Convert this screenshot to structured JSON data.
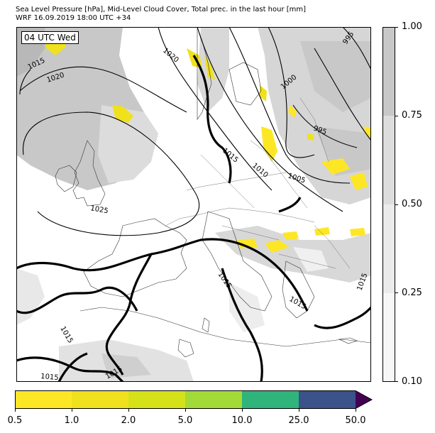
{
  "header": {
    "title_line1": "Sea Level Pressure [hPa], Mid-Level Cloud Cover, Total prec. in the last hour [mm]",
    "title_line2": "WRF 16.09.2019 18:00 UTC +34"
  },
  "map": {
    "time_label": "04 UTC Wed",
    "isobar_labels": [
      {
        "text": "1015"
      },
      {
        "text": "1020"
      },
      {
        "text": "1020"
      },
      {
        "text": "1025"
      },
      {
        "text": "1015"
      },
      {
        "text": "1010"
      },
      {
        "text": "1005"
      },
      {
        "text": "1000"
      },
      {
        "text": "995"
      },
      {
        "text": "995"
      },
      {
        "text": "1015"
      },
      {
        "text": "1015"
      },
      {
        "text": "1015"
      },
      {
        "text": "1015"
      },
      {
        "text": "1015"
      },
      {
        "text": "1015"
      }
    ]
  },
  "cloud_colorbar": {
    "ticks": [
      "0.10",
      "0.25",
      "0.50",
      "0.75",
      "1.00"
    ],
    "colors": [
      "#f7f7f7",
      "#ebebeb",
      "#dddddd",
      "#c8c8c8"
    ]
  },
  "precip_colorbar": {
    "ticks": [
      "0.5",
      "1.0",
      "2.0",
      "5.0",
      "10.0",
      "25.0",
      "50.0"
    ],
    "colors": [
      "#fde725",
      "#f0e11e",
      "#d5e21a",
      "#a2da37",
      "#2fb47c",
      "#3b528b",
      "#440154"
    ]
  }
}
